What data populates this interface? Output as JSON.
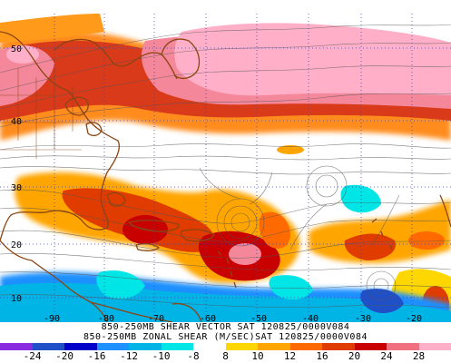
{
  "titles": {
    "line1": "850-250MB SHEAR VECTOR SAT 120825/0000V084",
    "line2": "850-250MB ZONAL SHEAR (M/SEC)SAT 120825/0000V084"
  },
  "lat_labels": [
    "50",
    "40",
    "30",
    "20",
    "10"
  ],
  "lon_labels": [
    "-90",
    "-80",
    "-70",
    "-60",
    "-50",
    "-40",
    "-30",
    "-20"
  ],
  "colorbar": {
    "labels": [
      "-24",
      "-20",
      "-16",
      "-12",
      "-10",
      "-8",
      "8",
      "10",
      "12",
      "16",
      "20",
      "24",
      "28"
    ],
    "colors": [
      "#8a2be2",
      "#2050c8",
      "#0000c8",
      "#1e90ff",
      "#00b4e6",
      "#00e6e6",
      "#ffffff",
      "#ffd700",
      "#ffa500",
      "#ff6a00",
      "#e03c00",
      "#c80000",
      "#f07080",
      "#ffb0c8"
    ]
  },
  "colors": {
    "land_outline": "#8b4513",
    "streamlines": "#555555",
    "grid": "#4444aa"
  }
}
